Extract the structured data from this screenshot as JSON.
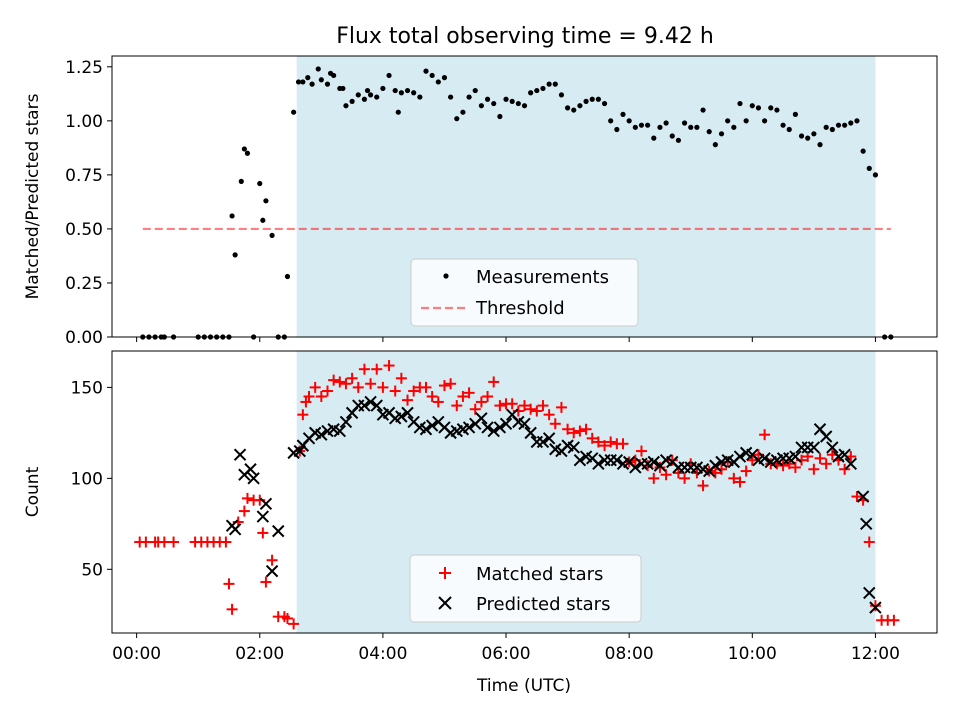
{
  "title": "Flux total observing time = 9.42 h",
  "colors": {
    "span_fill": "#add8e6",
    "measurement": "#000000",
    "threshold": "#ff0000",
    "matched": "#ff0000",
    "predicted": "#000000"
  },
  "chart_data": [
    {
      "type": "scatter",
      "ylabel": "Matched/Predicted stars",
      "xlabel": "",
      "xlim": [
        -0.4,
        13.0
      ],
      "ylim": [
        0,
        1.3
      ],
      "yticks": [
        0.0,
        0.25,
        0.5,
        0.75,
        1.0,
        1.25
      ],
      "ytick_labels": [
        "0.00",
        "0.25",
        "0.50",
        "0.75",
        "1.00",
        "1.25"
      ],
      "xticks": [
        0,
        2,
        4,
        6,
        8,
        10,
        12
      ],
      "xtick_labels": [
        "",
        "",
        "",
        "",
        "",
        "",
        ""
      ],
      "shaded_span": [
        2.6,
        12.0
      ],
      "threshold": {
        "name": "Threshold",
        "y": 0.5,
        "x_range": [
          0.1,
          12.25
        ]
      },
      "legend_position": "lower center",
      "series": [
        {
          "name": "Measurements",
          "marker": "dot",
          "x": [
            0.1,
            0.2,
            0.3,
            0.4,
            0.45,
            0.6,
            1.0,
            1.1,
            1.2,
            1.3,
            1.4,
            1.5,
            1.55,
            1.6,
            1.7,
            1.75,
            1.8,
            1.9,
            2.0,
            2.05,
            2.1,
            2.2,
            2.3,
            2.4,
            2.45,
            2.55,
            2.63,
            2.7,
            2.78,
            2.85,
            2.95,
            3.0,
            3.1,
            3.15,
            3.2,
            3.3,
            3.35,
            3.4,
            3.5,
            3.6,
            3.7,
            3.75,
            3.8,
            3.9,
            4.0,
            4.1,
            4.2,
            4.25,
            4.3,
            4.4,
            4.5,
            4.6,
            4.7,
            4.8,
            4.9,
            5.0,
            5.1,
            5.2,
            5.3,
            5.4,
            5.5,
            5.6,
            5.7,
            5.8,
            5.9,
            6.0,
            6.1,
            6.2,
            6.3,
            6.4,
            6.5,
            6.6,
            6.7,
            6.8,
            6.9,
            7.0,
            7.1,
            7.2,
            7.3,
            7.4,
            7.5,
            7.6,
            7.7,
            7.8,
            7.9,
            8.0,
            8.1,
            8.2,
            8.3,
            8.4,
            8.5,
            8.6,
            8.7,
            8.8,
            8.9,
            9.0,
            9.1,
            9.2,
            9.3,
            9.4,
            9.5,
            9.6,
            9.7,
            9.8,
            9.9,
            10.0,
            10.1,
            10.2,
            10.3,
            10.4,
            10.5,
            10.6,
            10.7,
            10.8,
            10.9,
            11.0,
            11.1,
            11.2,
            11.3,
            11.4,
            11.5,
            11.6,
            11.7,
            11.8,
            11.9,
            12.0,
            12.15,
            12.25
          ],
          "y": [
            0.0,
            0.0,
            0.0,
            0.0,
            0.0,
            0.0,
            0.0,
            0.0,
            0.0,
            0.0,
            0.0,
            0.0,
            0.56,
            0.38,
            0.72,
            0.87,
            0.85,
            0.0,
            0.71,
            0.54,
            0.63,
            0.47,
            0.0,
            0.0,
            0.28,
            1.04,
            1.18,
            1.18,
            1.2,
            1.17,
            1.24,
            1.19,
            1.17,
            1.22,
            1.21,
            1.15,
            1.15,
            1.07,
            1.09,
            1.12,
            1.1,
            1.14,
            1.12,
            1.11,
            1.15,
            1.21,
            1.14,
            1.04,
            1.13,
            1.14,
            1.13,
            1.11,
            1.23,
            1.21,
            1.18,
            1.2,
            1.11,
            1.01,
            1.04,
            1.11,
            1.14,
            1.07,
            1.1,
            1.08,
            1.02,
            1.1,
            1.09,
            1.08,
            1.07,
            1.13,
            1.14,
            1.15,
            1.17,
            1.17,
            1.12,
            1.06,
            1.05,
            1.07,
            1.09,
            1.1,
            1.1,
            1.08,
            1.0,
            0.96,
            1.03,
            1.0,
            0.97,
            0.98,
            0.98,
            0.92,
            0.97,
            0.99,
            0.93,
            0.91,
            0.99,
            0.97,
            0.97,
            1.05,
            0.95,
            0.89,
            0.94,
            1.0,
            0.97,
            1.08,
            1.0,
            1.07,
            1.06,
            1.0,
            1.06,
            1.05,
            0.98,
            0.96,
            1.03,
            0.93,
            0.92,
            0.94,
            0.89,
            0.97,
            0.96,
            0.98,
            0.98,
            0.99,
            1.0,
            0.86,
            0.78,
            0.75,
            0.0,
            0.0
          ]
        }
      ]
    },
    {
      "type": "scatter",
      "ylabel": "Count",
      "xlabel": "Time (UTC)",
      "xlim": [
        -0.4,
        13.0
      ],
      "ylim": [
        15,
        170
      ],
      "yticks": [
        50,
        100,
        150
      ],
      "ytick_labels": [
        "50",
        "100",
        "150"
      ],
      "xticks": [
        0,
        2,
        4,
        6,
        8,
        10,
        12
      ],
      "xtick_labels": [
        "00:00",
        "02:00",
        "04:00",
        "06:00",
        "08:00",
        "10:00",
        "12:00"
      ],
      "shaded_span": [
        2.6,
        12.0
      ],
      "legend_position": "lower center",
      "series": [
        {
          "name": "Matched stars",
          "marker": "plus",
          "x": [
            0.05,
            0.15,
            0.3,
            0.35,
            0.45,
            0.6,
            0.95,
            1.05,
            1.15,
            1.25,
            1.35,
            1.45,
            1.5,
            1.55,
            1.65,
            1.75,
            1.8,
            1.9,
            2.0,
            2.05,
            2.1,
            2.2,
            2.3,
            2.4,
            2.45,
            2.55,
            2.65,
            2.7,
            2.75,
            2.8,
            2.9,
            3.0,
            3.1,
            3.2,
            3.3,
            3.4,
            3.5,
            3.6,
            3.7,
            3.8,
            3.9,
            4.0,
            4.1,
            4.2,
            4.3,
            4.4,
            4.5,
            4.6,
            4.7,
            4.8,
            4.9,
            5.0,
            5.1,
            5.2,
            5.3,
            5.4,
            5.5,
            5.6,
            5.7,
            5.8,
            5.9,
            6.0,
            6.1,
            6.2,
            6.3,
            6.4,
            6.5,
            6.6,
            6.7,
            6.8,
            6.9,
            7.0,
            7.1,
            7.2,
            7.3,
            7.4,
            7.5,
            7.6,
            7.7,
            7.8,
            7.9,
            8.0,
            8.1,
            8.2,
            8.3,
            8.4,
            8.5,
            8.6,
            8.7,
            8.8,
            8.9,
            9.0,
            9.1,
            9.2,
            9.3,
            9.4,
            9.5,
            9.6,
            9.7,
            9.8,
            9.9,
            10.0,
            10.1,
            10.2,
            10.3,
            10.4,
            10.5,
            10.6,
            10.7,
            10.8,
            10.9,
            11.0,
            11.1,
            11.2,
            11.3,
            11.4,
            11.5,
            11.6,
            11.7,
            11.8,
            11.9,
            12.0,
            12.1,
            12.2,
            12.3
          ],
          "y": [
            65,
            65,
            65,
            65,
            65,
            65,
            65,
            65,
            65,
            65,
            65,
            65,
            42,
            28,
            76,
            82,
            89,
            88,
            88,
            70,
            43,
            55,
            24,
            24,
            23,
            20,
            115,
            135,
            142,
            145,
            150,
            145,
            148,
            154,
            153,
            152,
            155,
            150,
            160,
            152,
            160,
            150,
            162,
            148,
            155,
            143,
            148,
            150,
            150,
            145,
            142,
            151,
            152,
            140,
            145,
            147,
            138,
            142,
            145,
            153,
            140,
            141,
            141,
            137,
            140,
            138,
            137,
            140,
            135,
            130,
            139,
            127,
            125,
            126,
            127,
            122,
            120,
            118,
            120,
            119,
            119,
            109,
            110,
            115,
            107,
            100,
            106,
            102,
            110,
            103,
            100,
            108,
            103,
            96,
            104,
            103,
            105,
            109,
            100,
            98,
            104,
            110,
            113,
            124,
            108,
            108,
            107,
            108,
            106,
            110,
            112,
            105,
            111,
            108,
            113,
            110,
            105,
            112,
            90,
            88,
            65,
            30,
            22,
            22,
            22
          ]
        },
        {
          "name": "Predicted stars",
          "marker": "x",
          "x": [
            1.55,
            1.6,
            1.68,
            1.75,
            1.85,
            1.9,
            2.05,
            2.1,
            2.2,
            2.3,
            2.55,
            2.65,
            2.7,
            2.8,
            2.9,
            3.0,
            3.1,
            3.2,
            3.3,
            3.4,
            3.5,
            3.6,
            3.7,
            3.8,
            3.9,
            4.0,
            4.1,
            4.2,
            4.3,
            4.4,
            4.5,
            4.6,
            4.7,
            4.8,
            4.9,
            5.0,
            5.1,
            5.2,
            5.3,
            5.4,
            5.5,
            5.6,
            5.7,
            5.8,
            5.9,
            6.0,
            6.1,
            6.2,
            6.3,
            6.4,
            6.5,
            6.6,
            6.7,
            6.8,
            6.9,
            7.0,
            7.1,
            7.2,
            7.3,
            7.4,
            7.5,
            7.6,
            7.7,
            7.8,
            7.9,
            8.0,
            8.1,
            8.2,
            8.3,
            8.4,
            8.5,
            8.6,
            8.7,
            8.8,
            8.9,
            9.0,
            9.1,
            9.2,
            9.3,
            9.4,
            9.5,
            9.6,
            9.7,
            9.8,
            9.9,
            10.0,
            10.1,
            10.2,
            10.3,
            10.4,
            10.5,
            10.6,
            10.7,
            10.8,
            10.9,
            11.0,
            11.1,
            11.2,
            11.3,
            11.4,
            11.5,
            11.6,
            11.8,
            11.85,
            11.9,
            12.0
          ],
          "y": [
            74,
            72,
            113,
            102,
            105,
            100,
            79,
            86,
            49,
            71,
            114,
            115,
            118,
            122,
            125,
            124,
            126,
            127,
            126,
            131,
            136,
            140,
            140,
            142,
            140,
            135,
            136,
            133,
            134,
            136,
            131,
            128,
            127,
            129,
            131,
            128,
            125,
            126,
            127,
            128,
            130,
            133,
            128,
            126,
            128,
            130,
            135,
            131,
            130,
            125,
            120,
            120,
            122,
            116,
            115,
            118,
            117,
            110,
            112,
            111,
            108,
            110,
            110,
            110,
            108,
            109,
            106,
            108,
            108,
            109,
            107,
            110,
            109,
            106,
            106,
            106,
            106,
            105,
            104,
            107,
            109,
            110,
            109,
            112,
            114,
            113,
            110,
            111,
            109,
            110,
            111,
            111,
            112,
            117,
            117,
            117,
            127,
            123,
            117,
            112,
            113,
            108,
            90,
            75,
            37,
            29
          ]
        }
      ]
    }
  ]
}
